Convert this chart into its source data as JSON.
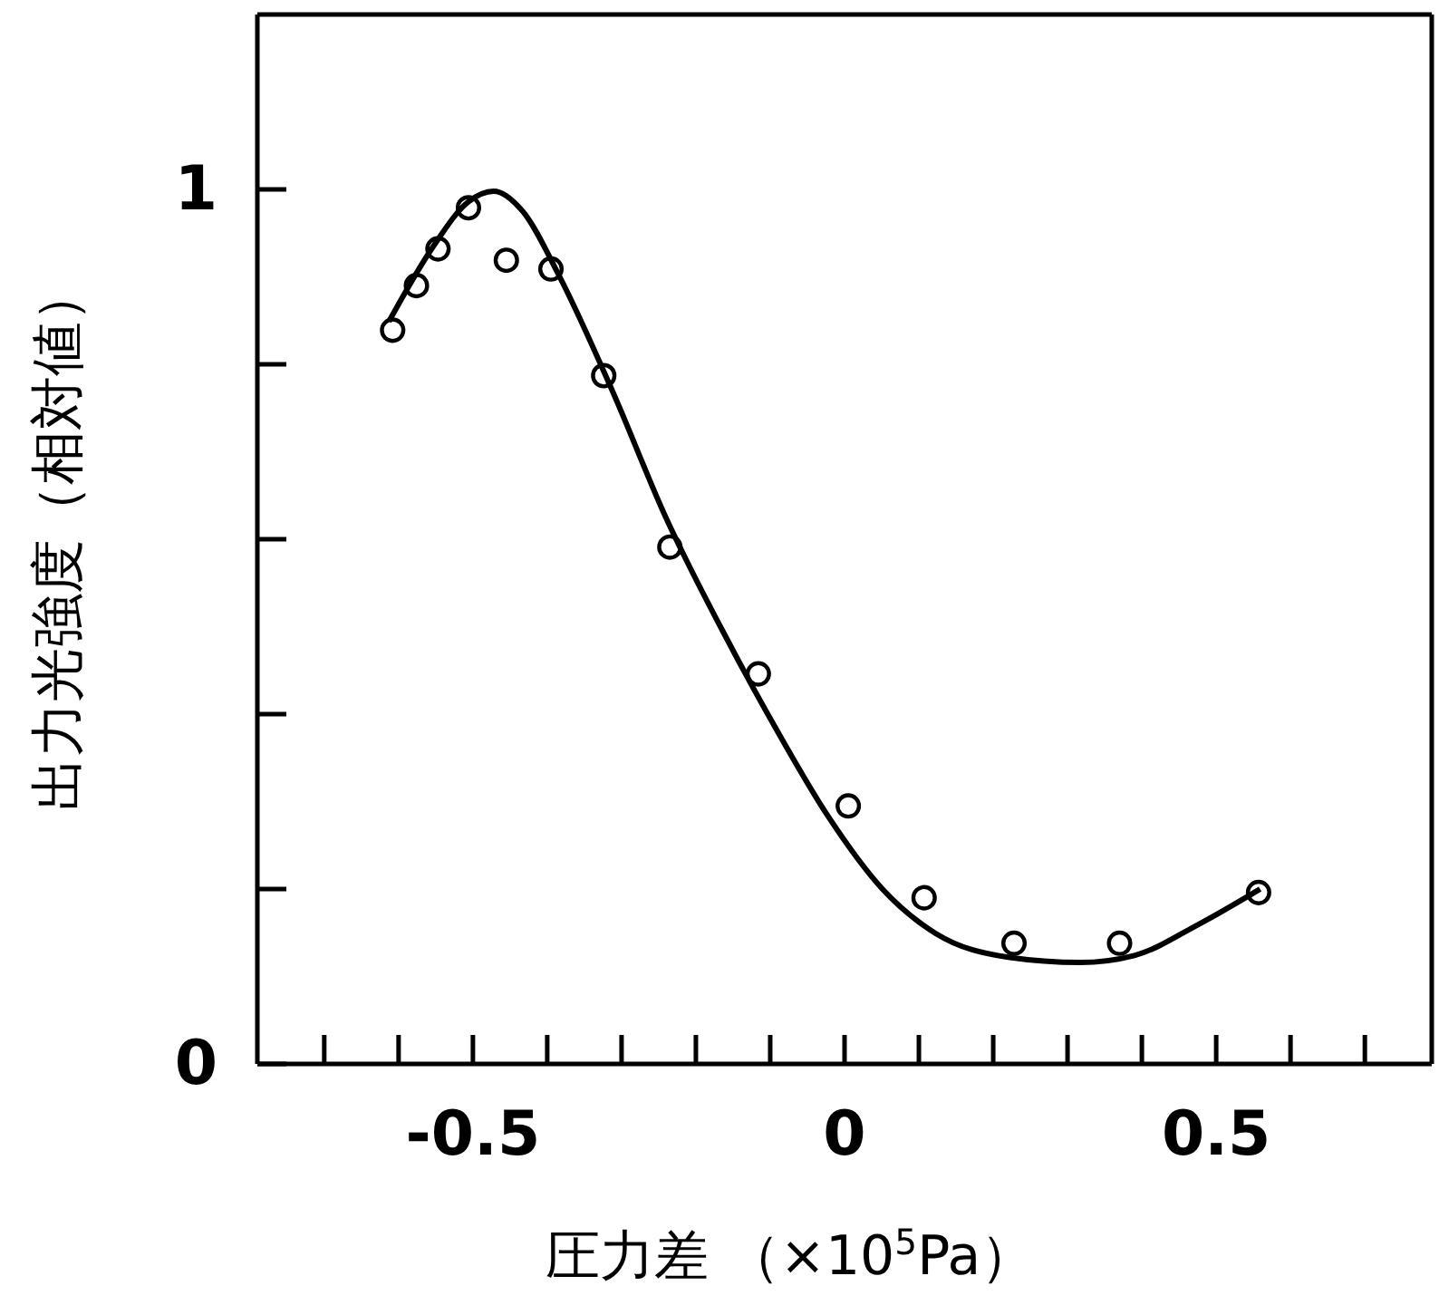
{
  "chart_data": {
    "type": "scatter",
    "xlabel": "圧力差 （×10$^{5}$Pa）",
    "ylabel": "出力光強度（相対値）",
    "xlim": [
      -0.79,
      0.79
    ],
    "ylim": [
      0,
      1.2
    ],
    "xticks": [
      {
        "value": -0.7,
        "label": null
      },
      {
        "value": -0.6,
        "label": null
      },
      {
        "value": -0.5,
        "label": "-0.5"
      },
      {
        "value": -0.4,
        "label": null
      },
      {
        "value": -0.3,
        "label": null
      },
      {
        "value": -0.2,
        "label": null
      },
      {
        "value": -0.1,
        "label": null
      },
      {
        "value": 0,
        "label": "0"
      },
      {
        "value": 0.1,
        "label": null
      },
      {
        "value": 0.2,
        "label": null
      },
      {
        "value": 0.3,
        "label": null
      },
      {
        "value": 0.4,
        "label": null
      },
      {
        "value": 0.5,
        "label": "0.5"
      },
      {
        "value": 0.6,
        "label": null
      },
      {
        "value": 0.7,
        "label": null
      }
    ],
    "yticks": [
      {
        "value": 0,
        "label": "0"
      },
      {
        "value": 0.2,
        "label": null
      },
      {
        "value": 0.4,
        "label": null
      },
      {
        "value": 0.6,
        "label": null
      },
      {
        "value": 0.8,
        "label": null
      },
      {
        "value": 1,
        "label": "1"
      }
    ],
    "grid": false,
    "series": [
      {
        "marker": "circle",
        "color": "#000000",
        "x": [
          -0.608,
          -0.576,
          -0.547,
          -0.506,
          -0.455,
          -0.395,
          -0.324,
          -0.235,
          -0.116,
          0.005,
          0.107,
          0.228,
          0.37,
          0.557
        ],
        "values": [
          0.839,
          0.89,
          0.932,
          0.979,
          0.919,
          0.909,
          0.787,
          0.591,
          0.446,
          0.295,
          0.19,
          0.138,
          0.138,
          0.196
        ]
      },
      {
        "type": "line",
        "marker": "none",
        "line_style": "solid",
        "color": "#000000",
        "x": [
          -0.613,
          -0.554,
          -0.506,
          -0.472,
          -0.433,
          -0.385,
          -0.312,
          -0.24,
          -0.167,
          -0.094,
          -0.022,
          0.051,
          0.123,
          0.22,
          0.317,
          0.39,
          0.475,
          0.559
        ],
        "values": [
          0.849,
          0.934,
          0.986,
          0.998,
          0.975,
          0.903,
          0.769,
          0.624,
          0.5,
          0.386,
          0.283,
          0.2,
          0.149,
          0.122,
          0.116,
          0.124,
          0.159,
          0.2
        ]
      }
    ]
  }
}
